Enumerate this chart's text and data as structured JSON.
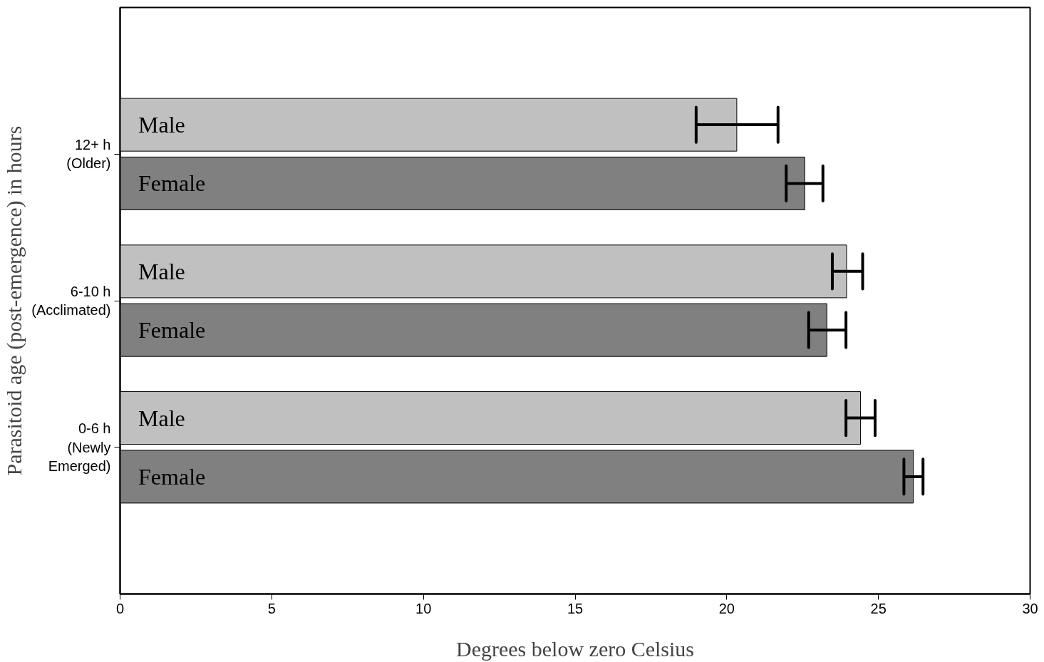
{
  "chart_data": {
    "type": "bar",
    "orientation": "horizontal",
    "xlabel": "Degrees below zero Celsius",
    "ylabel": "Parasitoid age (post-emergence) in hours",
    "categories": [
      "12+ h\n(Older)",
      "6-10 h\n(Acclimated)",
      "0-6 h\n(Newly\nEmerged)"
    ],
    "series": [
      {
        "name": "Male",
        "color": "#c0c0c0",
        "values": [
          20.33,
          23.95,
          24.41
        ],
        "errors": [
          [
            18.99,
            21.69
          ],
          [
            23.48,
            24.48
          ],
          [
            23.93,
            24.89
          ]
        ]
      },
      {
        "name": "Female",
        "color": "#808080",
        "values": [
          22.57,
          23.3,
          26.15
        ],
        "errors": [
          [
            21.96,
            23.17
          ],
          [
            22.7,
            23.93
          ],
          [
            25.84,
            26.47
          ]
        ]
      }
    ],
    "xlim": [
      0,
      30
    ],
    "xticks": [
      0,
      5,
      10,
      15,
      20,
      25,
      30
    ],
    "grid": false,
    "legend": false
  }
}
